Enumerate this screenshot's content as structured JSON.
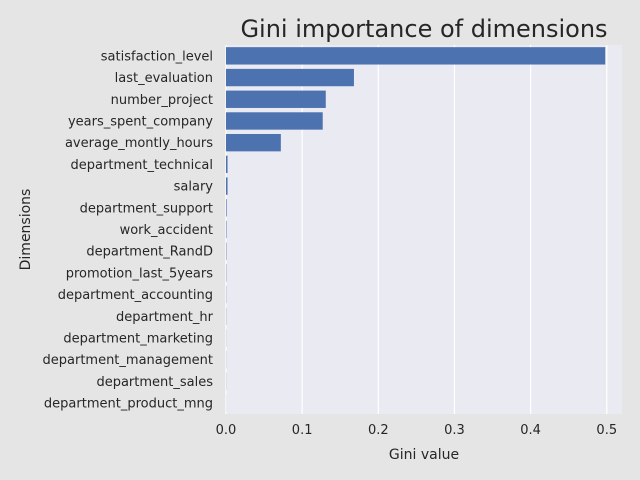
{
  "chart_data": {
    "type": "bar",
    "orientation": "horizontal",
    "title": "Gini importance of dimensions",
    "xlabel": "Gini value",
    "ylabel": "Dimensions",
    "xlim": [
      0,
      0.52
    ],
    "x_ticks": [
      0.0,
      0.1,
      0.2,
      0.3,
      0.4,
      0.5
    ],
    "x_tick_labels": [
      "0.0",
      "0.1",
      "0.2",
      "0.3",
      "0.4",
      "0.5"
    ],
    "grid": true,
    "categories": [
      "satisfaction_level",
      "last_evaluation",
      "number_project",
      "years_spent_company",
      "average_montly_hours",
      "department_technical",
      "salary",
      "department_support",
      "work_accident",
      "department_RandD",
      "promotion_last_5years",
      "department_accounting",
      "department_hr",
      "department_marketing",
      "department_management",
      "department_sales",
      "department_product_mng"
    ],
    "values": [
      0.498,
      0.168,
      0.131,
      0.127,
      0.072,
      0.002,
      0.002,
      0.0008,
      0.0006,
      0.0005,
      0.0004,
      0.0003,
      0.0003,
      0.0002,
      0.0002,
      0.0002,
      0.0001
    ],
    "colors": {
      "bar": "#4c72b0",
      "plot_background": "#eaeaf2",
      "figure_background": "#e5e5e5",
      "grid": "#ffffff",
      "text": "#262626"
    }
  }
}
